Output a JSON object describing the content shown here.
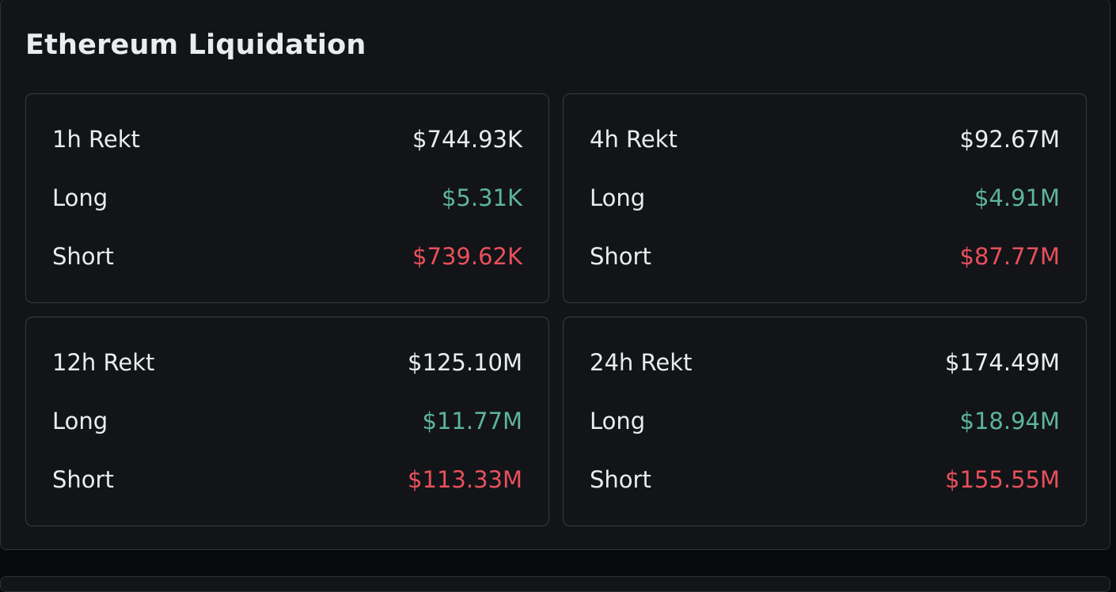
{
  "header": {
    "title": "Ethereum Liquidation"
  },
  "cards": [
    {
      "label": "1h Rekt",
      "total": "$744.93K",
      "rows": [
        {
          "label": "Long",
          "value": "$5.31K"
        },
        {
          "label": "Short",
          "value": "$739.62K"
        }
      ]
    },
    {
      "label": "4h Rekt",
      "total": "$92.67M",
      "rows": [
        {
          "label": "Long",
          "value": "$4.91M"
        },
        {
          "label": "Short",
          "value": "$87.77M"
        }
      ]
    },
    {
      "label": "12h Rekt",
      "total": "$125.10M",
      "rows": [
        {
          "label": "Long",
          "value": "$11.77M"
        },
        {
          "label": "Short",
          "value": "$113.33M"
        }
      ]
    },
    {
      "label": "24h Rekt",
      "total": "$174.49M",
      "rows": [
        {
          "label": "Long",
          "value": "$18.94M"
        },
        {
          "label": "Short",
          "value": "$155.55M"
        }
      ]
    }
  ]
}
